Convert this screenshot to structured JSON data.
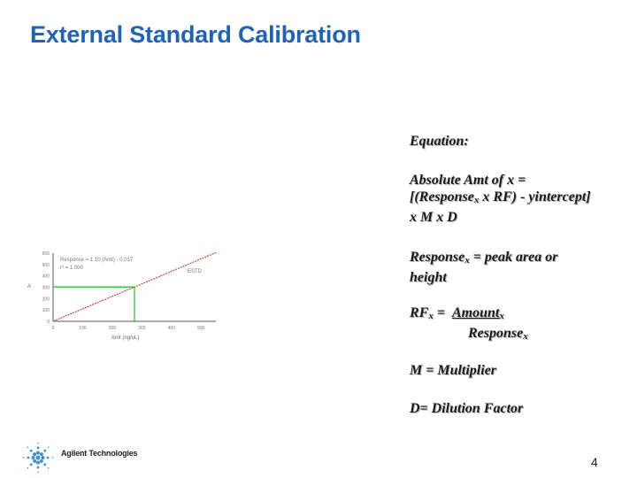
{
  "slide": {
    "title": "External Standard Calibration",
    "page_number": "4"
  },
  "equation_panel": {
    "heading": "Equation:",
    "absolute_amt_line1": "Absolute Amt of x =",
    "absolute_amt_line2_a": "[(Response",
    "absolute_amt_line2_sub": "x",
    "absolute_amt_line2_b": " x RF) - yintercept]",
    "absolute_amt_line3": "x M x D",
    "response_a": "Response",
    "response_sub": "x",
    "response_b": " = peak area or",
    "response_line2": "height",
    "rf_a": "RF",
    "rf_sub": "x",
    "rf_b": " = ",
    "rf_numerator": "Amount",
    "rf_numerator_sub": "x",
    "rf_denominator": "Response",
    "rf_denominator_sub": "x",
    "multiplier": "M = Multiplier",
    "dilution": "D= Dilution Factor"
  },
  "logo": {
    "text": "Agilent Technologies",
    "icon": "agilent-spark-icon"
  },
  "chart_data": {
    "type": "line",
    "equation_label": "Response = 1.10 (Amt) - 0.017",
    "r2_label": "r² = 1.000",
    "series_label": "ESTD",
    "xlabel": "Amt (ng/uL)",
    "ylabel": "A",
    "x_ticks": [
      "0",
      "100",
      "200",
      "300",
      "400",
      "500"
    ],
    "y_ticks": [
      "0",
      "100",
      "200",
      "300",
      "400",
      "500",
      "600"
    ],
    "xlim": [
      0,
      550
    ],
    "ylim": [
      0,
      600
    ],
    "line": {
      "x": [
        0,
        550
      ],
      "y": [
        -0.017,
        604.98
      ]
    },
    "highlight_point": {
      "x": 275,
      "y": 302.5
    },
    "colors": {
      "line": "#c0392b",
      "guide": "#22cc22",
      "axis": "#555555"
    }
  }
}
